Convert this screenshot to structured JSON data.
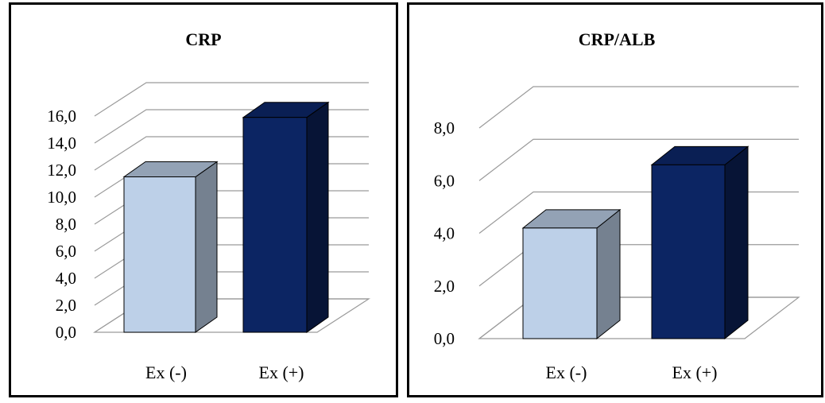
{
  "chart_data": [
    {
      "type": "bar",
      "title": "CRP",
      "categories": [
        "Ex (-)",
        "Ex (+)"
      ],
      "values": [
        11.5,
        15.9
      ],
      "ylim": [
        0,
        16
      ],
      "yticks": [
        "0,0",
        "2,0",
        "4,0",
        "6,0",
        "8,0",
        "10,0",
        "12,0",
        "14,0",
        "16,0"
      ],
      "grid": true,
      "style": "3d-column",
      "colors": [
        "#bdd0e8",
        "#0c2563"
      ]
    },
    {
      "type": "bar",
      "title": "CRP/ALB",
      "categories": [
        "Ex (-)",
        "Ex (+)"
      ],
      "values": [
        4.2,
        6.6
      ],
      "ylim": [
        0,
        8
      ],
      "yticks": [
        "0,0",
        "2,0",
        "4,0",
        "6,0",
        "8,0"
      ],
      "grid": true,
      "style": "3d-column",
      "colors": [
        "#bdd0e8",
        "#0c2563"
      ]
    }
  ]
}
